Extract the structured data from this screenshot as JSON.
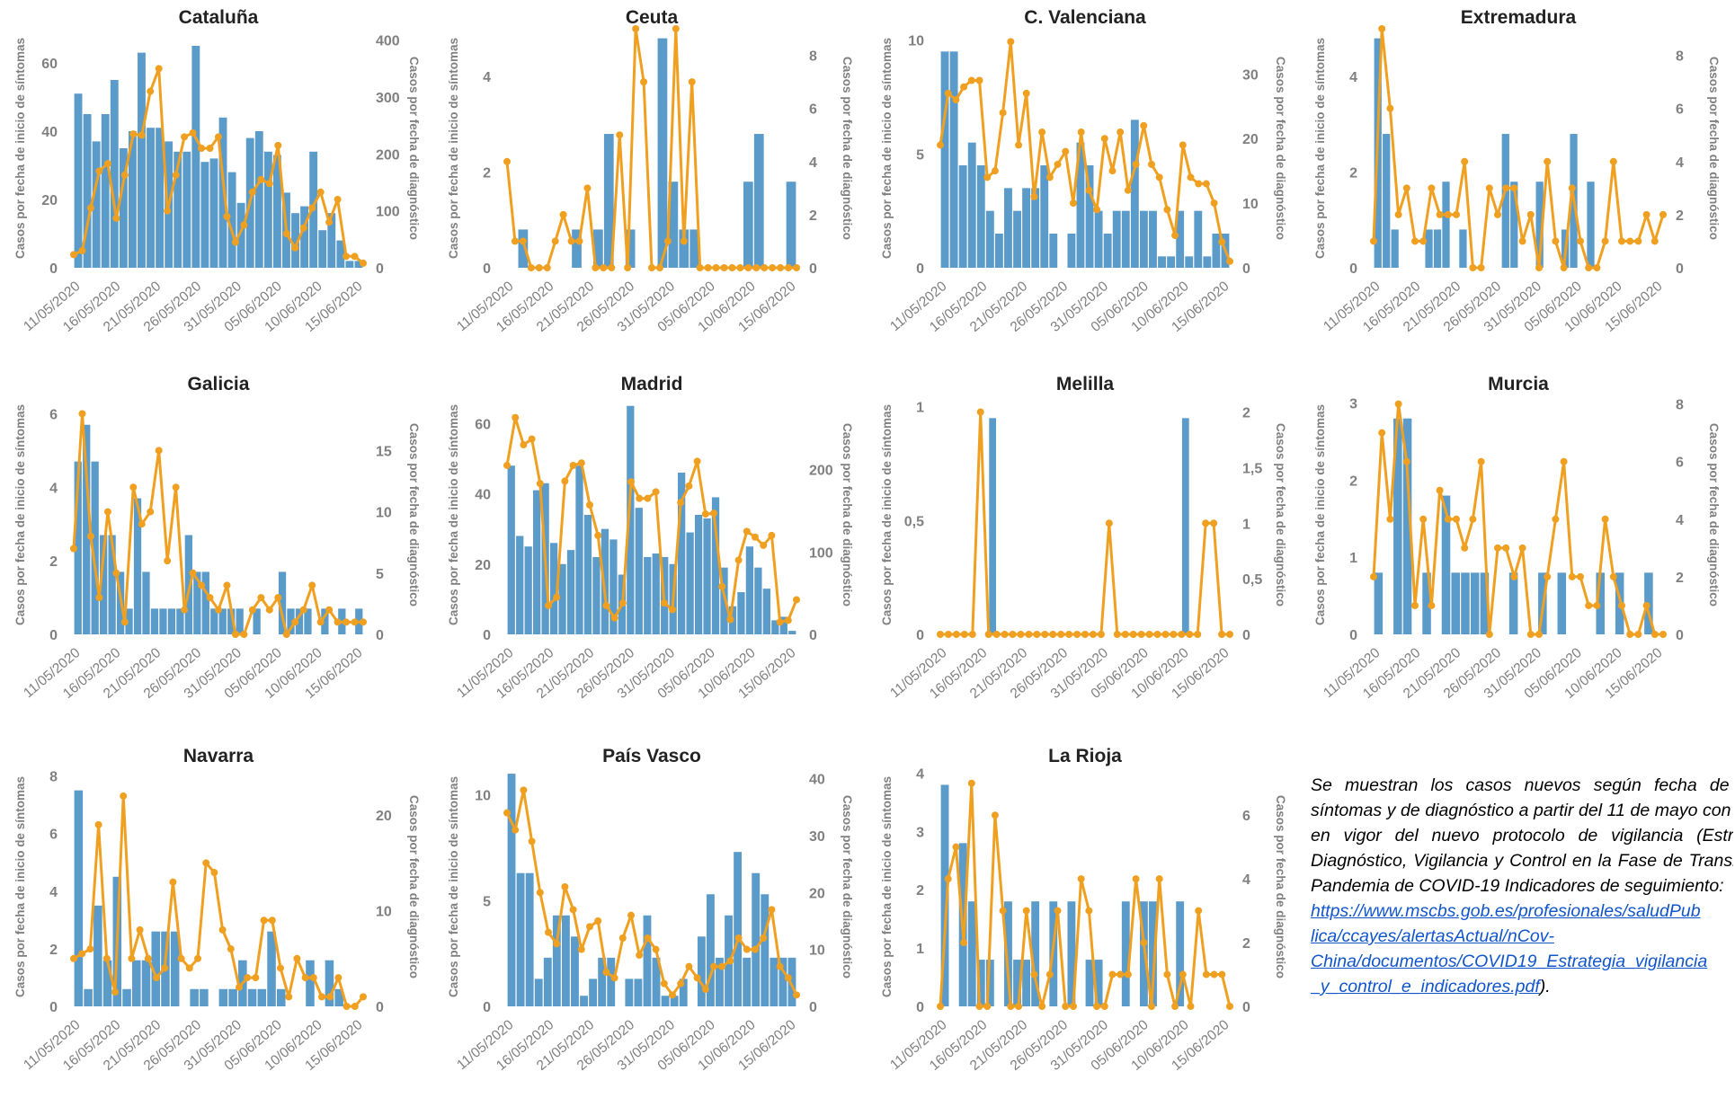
{
  "colors": {
    "bars": "#5b9bc9",
    "line": "#f0a020",
    "axis_text": "#808080",
    "grid": "#d9d9d9"
  },
  "common": {
    "x_tick_labels": [
      "11/05/2020",
      "16/05/2020",
      "21/05/2020",
      "26/05/2020",
      "31/05/2020",
      "05/06/2020",
      "10/06/2020",
      "15/06/2020"
    ],
    "y_left_label": "Casos por fecha de inicio de síntomas",
    "y_right_label": "Casos por fecha de diagnóstico"
  },
  "chart_data": [
    {
      "type": "bar+line",
      "title": "Cataluña",
      "left_ticks": [
        "0",
        "20",
        "40",
        "60"
      ],
      "left_range": [
        0,
        70
      ],
      "right_ticks": [
        "0",
        "100",
        "200",
        "300",
        "400"
      ],
      "right_range": [
        0,
        420
      ],
      "bars": [
        51,
        45,
        37,
        45,
        55,
        35,
        40,
        63,
        41,
        41,
        37,
        34,
        34,
        65,
        31,
        32,
        44,
        28,
        19,
        38,
        40,
        34,
        33,
        22,
        16,
        18,
        34,
        11,
        16,
        8,
        2,
        2
      ],
      "line": [
        23,
        30,
        105,
        170,
        183,
        87,
        163,
        235,
        233,
        310,
        350,
        100,
        163,
        230,
        237,
        210,
        210,
        230,
        90,
        45,
        75,
        133,
        155,
        148,
        215,
        60,
        35,
        70,
        105,
        133,
        80,
        120,
        20,
        20,
        8
      ]
    },
    {
      "type": "bar+line",
      "title": "Ceuta",
      "left_ticks": [
        "0",
        "2",
        "4"
      ],
      "left_range": [
        0,
        5
      ],
      "right_ticks": [
        "0",
        "2",
        "4",
        "6",
        "8"
      ],
      "right_range": [
        0,
        9
      ],
      "bars": [
        0,
        0.8,
        0,
        0,
        0,
        0,
        0.8,
        0,
        0.8,
        2.8,
        0,
        0.8,
        0,
        0,
        4.8,
        1.8,
        0.8,
        0.8,
        0,
        0,
        0,
        0,
        1.8,
        2.8,
        0,
        0,
        1.8
      ],
      "line": [
        4,
        1,
        1,
        0,
        0,
        0,
        1,
        2,
        1,
        1,
        3,
        0,
        0,
        0,
        5,
        0,
        9,
        7,
        0,
        0,
        1,
        9,
        1,
        7,
        0,
        0,
        0,
        0,
        0,
        0,
        0,
        0,
        0,
        0,
        0,
        0,
        0
      ]
    },
    {
      "type": "bar+line",
      "title": "C. Valenciana",
      "left_ticks": [
        "0",
        "5",
        "10"
      ],
      "left_range": [
        0,
        10.5
      ],
      "right_ticks": [
        "0",
        "10",
        "20",
        "30"
      ],
      "right_range": [
        0,
        37
      ],
      "bars": [
        9.5,
        9.5,
        4.5,
        5.5,
        4.5,
        2.5,
        1.5,
        3.5,
        2.5,
        3.5,
        3.5,
        4.5,
        1.5,
        0,
        1.5,
        5.5,
        4.5,
        2.5,
        1.5,
        2.5,
        2.5,
        6.5,
        2.5,
        2.5,
        0.5,
        0.5,
        2.5,
        0.5,
        2.5,
        0.5,
        1.5,
        1.5
      ],
      "line": [
        19,
        27,
        26,
        28,
        29,
        29,
        14,
        15,
        24,
        35,
        19,
        27,
        11,
        21,
        14,
        16,
        18,
        10,
        21,
        12,
        9,
        20,
        15,
        21,
        12,
        16,
        22,
        16,
        14,
        9,
        5,
        19,
        14,
        13,
        13,
        10,
        4,
        1
      ]
    },
    {
      "type": "bar+line",
      "title": "Extremadura",
      "left_ticks": [
        "0",
        "2",
        "4"
      ],
      "left_range": [
        0,
        5
      ],
      "right_ticks": [
        "0",
        "2",
        "4",
        "6",
        "8"
      ],
      "right_range": [
        0,
        9
      ],
      "bars": [
        4.8,
        2.8,
        0.8,
        0,
        0,
        0,
        0.8,
        0.8,
        1.8,
        0,
        0.8,
        0,
        0,
        0,
        0,
        2.8,
        1.8,
        0,
        0,
        1.8,
        0,
        0,
        0.8,
        2.8,
        0,
        1.8,
        0,
        0,
        0,
        0,
        0,
        0,
        0,
        0
      ],
      "line": [
        1,
        9,
        6,
        2,
        3,
        1,
        1,
        3,
        2,
        2,
        2,
        4,
        0,
        0,
        3,
        2,
        3,
        3,
        1,
        2,
        0,
        4,
        1,
        0,
        3,
        1,
        0,
        0,
        1,
        4,
        1,
        1,
        1,
        2,
        1,
        2
      ]
    },
    {
      "type": "bar+line",
      "title": "Galicia",
      "left_ticks": [
        "0",
        "2",
        "4",
        "6"
      ],
      "left_range": [
        0,
        6.5
      ],
      "right_ticks": [
        "0",
        "5",
        "10",
        "15"
      ],
      "right_range": [
        0,
        19.5
      ],
      "bars": [
        4.7,
        5.7,
        4.7,
        2.7,
        2.7,
        1.7,
        0.7,
        3.7,
        1.7,
        0.7,
        0.7,
        0.7,
        0.7,
        2.7,
        1.7,
        1.7,
        0.7,
        0.7,
        0.7,
        0.7,
        0,
        0.7,
        0,
        0,
        1.7,
        0.7,
        0.7,
        0.7,
        0,
        0.7,
        0,
        0.7,
        0,
        0.7
      ],
      "line": [
        7,
        18,
        8,
        3,
        10,
        5,
        1,
        12,
        9,
        10,
        15,
        6,
        12,
        2,
        5,
        4,
        3,
        2,
        4,
        0,
        0,
        2,
        3,
        2,
        3,
        0,
        1,
        2,
        4,
        1,
        2,
        1,
        1,
        1,
        1
      ]
    },
    {
      "type": "bar+line",
      "title": "Madrid",
      "left_ticks": [
        "0",
        "20",
        "40",
        "60"
      ],
      "left_range": [
        0,
        68
      ],
      "right_ticks": [
        "0",
        "100",
        "200"
      ],
      "right_range": [
        0,
        290
      ],
      "bars": [
        48,
        28,
        25,
        41,
        43,
        26,
        20,
        24,
        48,
        34,
        22,
        30,
        27,
        17,
        65,
        36,
        22,
        23,
        22,
        20,
        46,
        29,
        34,
        33,
        39,
        19,
        8,
        12,
        25,
        19,
        13,
        4,
        5,
        1
      ],
      "line": [
        205,
        263,
        230,
        237,
        183,
        35,
        45,
        186,
        205,
        208,
        157,
        120,
        35,
        20,
        38,
        185,
        165,
        165,
        173,
        38,
        30,
        160,
        180,
        210,
        146,
        147,
        58,
        18,
        90,
        125,
        118,
        108,
        120,
        15,
        17,
        42
      ]
    },
    {
      "type": "bar+line",
      "title": "Melilla",
      "left_ticks": [
        "0",
        "0,5",
        "1"
      ],
      "left_range": [
        0,
        1.05
      ],
      "right_ticks": [
        "0",
        "0,5",
        "1",
        "1,5",
        "2"
      ],
      "right_range": [
        0,
        2.15
      ],
      "bars": [
        0,
        0,
        0,
        0,
        0,
        0,
        0.95,
        0,
        0,
        0,
        0,
        0,
        0,
        0,
        0,
        0,
        0,
        0,
        0,
        0,
        0,
        0,
        0,
        0,
        0,
        0,
        0,
        0,
        0,
        0,
        0.95,
        0,
        0,
        0,
        0,
        0
      ],
      "line": [
        0,
        0,
        0,
        0,
        0,
        2,
        0,
        0,
        0,
        0,
        0,
        0,
        0,
        0,
        0,
        0,
        0,
        0,
        0,
        0,
        0,
        1,
        0,
        0,
        0,
        0,
        0,
        0,
        0,
        0,
        0,
        0,
        0,
        1,
        1,
        0,
        0
      ]
    },
    {
      "type": "bar+line",
      "title": "Murcia",
      "left_ticks": [
        "0",
        "1",
        "2",
        "3"
      ],
      "left_range": [
        0,
        3.1
      ],
      "right_ticks": [
        "0",
        "2",
        "4",
        "6",
        "8"
      ],
      "right_range": [
        0,
        8.3
      ],
      "bars": [
        0.8,
        0,
        2.8,
        2.8,
        0,
        0.8,
        0,
        1.8,
        0.8,
        0.8,
        0.8,
        0.8,
        0,
        0,
        0.8,
        0,
        0,
        0.8,
        0,
        0.8,
        0,
        0,
        0,
        0.8,
        0,
        0.8,
        0,
        0,
        0.8,
        0
      ],
      "line": [
        2,
        7,
        4,
        8,
        6,
        1,
        4,
        1,
        5,
        4,
        4,
        3,
        4,
        6,
        0,
        3,
        3,
        2,
        3,
        0,
        0,
        2,
        4,
        6,
        2,
        2,
        1,
        1,
        4,
        2,
        1,
        0,
        0,
        1,
        0,
        0
      ]
    },
    {
      "type": "bar+line",
      "title": "Navarra",
      "left_ticks": [
        "0",
        "2",
        "4",
        "6",
        "8"
      ],
      "left_range": [
        0,
        8.3
      ],
      "right_ticks": [
        "0",
        "10",
        "20"
      ],
      "right_range": [
        0,
        25
      ],
      "bars": [
        7.5,
        0.6,
        3.5,
        1.6,
        4.5,
        0.6,
        1.6,
        1.6,
        2.6,
        2.6,
        2.6,
        0,
        0.6,
        0.6,
        0,
        0.6,
        0.6,
        1.6,
        0.6,
        0.6,
        2.6,
        0.6,
        0,
        0,
        1.6,
        0,
        1.6,
        0.6,
        0,
        0
      ],
      "line": [
        5,
        5.5,
        6,
        19,
        5,
        1.5,
        22,
        5,
        8,
        5,
        3,
        4,
        13,
        5,
        4,
        5,
        15,
        14,
        8,
        6,
        2,
        3,
        3,
        9,
        9,
        4,
        1,
        5,
        3,
        3,
        1,
        1,
        3,
        0,
        0,
        1
      ]
    },
    {
      "type": "bar+line",
      "title": "País Vasco",
      "left_ticks": [
        "0",
        "5",
        "10"
      ],
      "left_range": [
        0,
        11.3
      ],
      "right_ticks": [
        "0",
        "10",
        "20",
        "30",
        "40"
      ],
      "right_range": [
        0,
        42
      ],
      "bars": [
        11,
        6.3,
        6.3,
        1.3,
        2.3,
        4.3,
        4.3,
        3.3,
        0.5,
        1.3,
        2.3,
        2.3,
        0,
        1.3,
        1.3,
        4.3,
        2.3,
        0.5,
        0.5,
        1.3,
        0,
        3.3,
        5.3,
        2.3,
        4.3,
        7.3,
        2.3,
        6.3,
        5.3,
        2.3,
        2.3,
        2.3
      ],
      "line": [
        34,
        31,
        38,
        29,
        20,
        13,
        11,
        21,
        17,
        10,
        14,
        15,
        6,
        5,
        12,
        16,
        9,
        12,
        10,
        4,
        2,
        4,
        7,
        5,
        3,
        7,
        7,
        8,
        12,
        10,
        10,
        12,
        17,
        7,
        5,
        2
      ]
    },
    {
      "type": "bar+line",
      "title": "La Rioja",
      "left_ticks": [
        "0",
        "1",
        "2",
        "3",
        "4"
      ],
      "left_range": [
        0,
        4.1
      ],
      "right_ticks": [
        "0",
        "2",
        "4",
        "6"
      ],
      "right_range": [
        0,
        7.5
      ],
      "bars": [
        3.8,
        0,
        2.8,
        1.8,
        0.8,
        0.8,
        0,
        1.8,
        0.8,
        0.8,
        1.8,
        0,
        1.8,
        0,
        1.8,
        0,
        0.8,
        0.8,
        0,
        0,
        1.8,
        0,
        1.8,
        1.8,
        0,
        0,
        1.8,
        0,
        0,
        0,
        0,
        0
      ],
      "line": [
        0,
        4,
        5,
        2,
        7,
        0,
        0,
        6,
        3,
        0,
        0,
        3,
        1,
        0,
        1,
        3,
        0,
        0,
        4,
        3,
        0,
        0,
        1,
        1,
        1,
        4,
        2,
        0,
        4,
        1,
        0,
        1,
        0,
        3,
        1,
        1,
        1,
        0
      ]
    }
  ],
  "note": {
    "text": "Se muestran los casos nuevos según fecha de inicio de síntomas y de diagnóstico a partir del 11 de mayo con la entrada en vigor del nuevo protocolo de vigilancia (Estrategia de Diagnóstico, Vigilancia y Control en la Fase de Transición de la Pandemia de COVID-19 Indicadores de seguimiento:",
    "link_lines": [
      "https://www.mscbs.gob.es/profesionales/saludPub",
      "lica/ccayes/alertasActual/nCov-",
      "China/documentos/COVID19_Estrategia_vigilancia",
      "_y_control_e_indicadores.pdf"
    ],
    "tail": ")."
  }
}
